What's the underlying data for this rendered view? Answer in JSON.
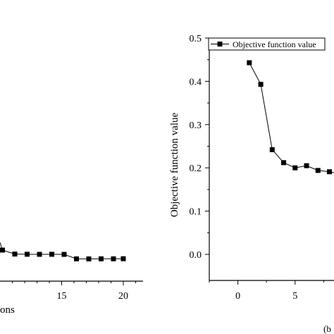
{
  "chart_data": [
    {
      "type": "line",
      "title": "",
      "xlabel": "ons",
      "ylabel": "",
      "xticks": [
        "15",
        "20"
      ],
      "series": [
        {
          "name": "",
          "points": [
            [
              10.2,
              0.0101
            ],
            [
              11.2,
              0.0008
            ],
            [
              12.2,
              0.0003
            ],
            [
              13.2,
              0.0001
            ],
            [
              14.2,
              0.0002
            ],
            [
              15.2,
              0.0
            ],
            [
              16.2,
              -0.0106
            ],
            [
              17.2,
              -0.0107
            ],
            [
              18.2,
              -0.0105
            ],
            [
              19.2,
              -0.0105
            ],
            [
              20.0,
              -0.0103
            ]
          ]
        }
      ],
      "xlim": [
        10,
        21.6
      ]
    },
    {
      "type": "line",
      "title": "",
      "xlabel": "",
      "ylabel": "Objective function value",
      "panel_label": "(b",
      "xlim": [
        -2.5,
        8.4
      ],
      "ylim": [
        -0.06,
        0.5
      ],
      "xticks": [
        0,
        5
      ],
      "yticks": [
        0.0,
        0.1,
        0.2,
        0.3,
        0.4,
        0.5
      ],
      "ytick_labels": [
        "0.0",
        "0.1",
        "0.2",
        "0.3",
        "0.4",
        "0.5"
      ],
      "grid": false,
      "legend_position": "top-right",
      "series": [
        {
          "name": "Objective function value",
          "x": [
            1,
            2,
            3,
            4,
            5,
            6,
            7,
            8
          ],
          "y": [
            0.443,
            0.393,
            0.242,
            0.212,
            0.2,
            0.205,
            0.194,
            0.191
          ]
        }
      ]
    }
  ]
}
